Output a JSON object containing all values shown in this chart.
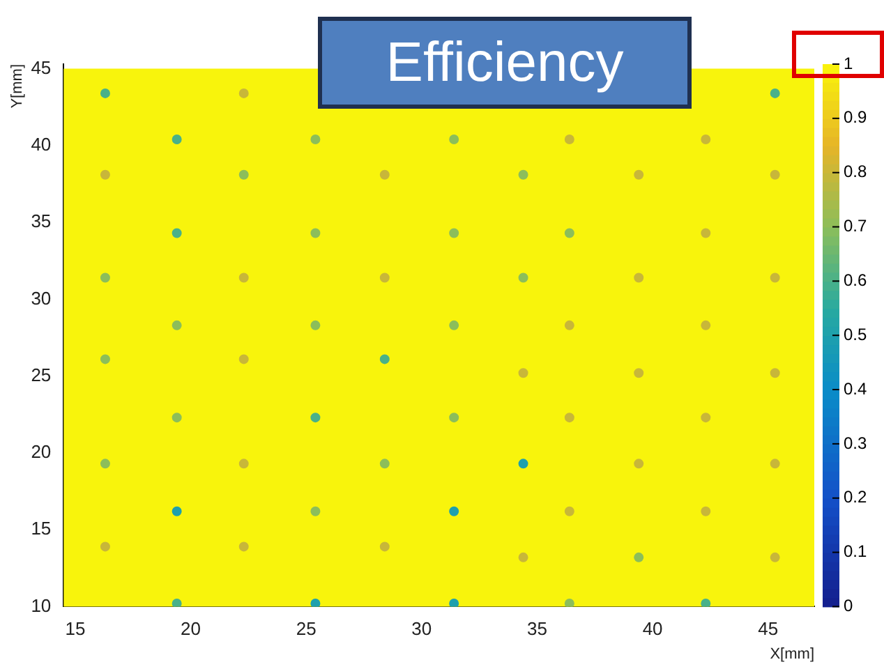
{
  "chart_data": {
    "type": "scatter",
    "title": "Efficiency",
    "xlabel": "X[mm]",
    "ylabel": "Y[mm]",
    "xlim": [
      14.5,
      47
    ],
    "ylim": [
      10,
      45.3
    ],
    "xticks": [
      15,
      20,
      25,
      30,
      35,
      40,
      45
    ],
    "yticks": [
      10,
      15,
      20,
      25,
      30,
      35,
      40,
      45
    ],
    "clim": [
      0,
      1
    ],
    "cticks": [
      0,
      0.1,
      0.2,
      0.3,
      0.4,
      0.5,
      0.6,
      0.7,
      0.8,
      0.9,
      1
    ],
    "bands": [
      {
        "axis": "y",
        "from": 10,
        "to": 45,
        "color": "#f8f40c"
      }
    ],
    "marker": "circle",
    "grid": false,
    "legend": false,
    "x": [
      16.3,
      22.3,
      45.3,
      19.4,
      25.4,
      31.4,
      36.4,
      42.3,
      16.3,
      22.3,
      28.4,
      34.4,
      39.4,
      45.3,
      19.4,
      25.4,
      31.4,
      36.4,
      42.3,
      16.3,
      22.3,
      28.4,
      34.4,
      39.4,
      45.3,
      19.4,
      25.4,
      31.4,
      36.4,
      42.3,
      16.3,
      22.3,
      28.4,
      34.4,
      39.4,
      45.3,
      19.4,
      25.4,
      31.4,
      36.4,
      42.3,
      16.3,
      22.3,
      28.4,
      34.4,
      39.4,
      45.3,
      19.4,
      25.4,
      31.4,
      36.4,
      42.3,
      16.3,
      22.3,
      28.4,
      34.4,
      39.4,
      45.3,
      19.4,
      25.4,
      31.4,
      36.4,
      42.3
    ],
    "values": [
      43.4,
      43.4,
      43.4,
      40.4,
      40.4,
      40.4,
      40.4,
      40.4,
      38.1,
      38.1,
      38.1,
      38.1,
      38.1,
      38.1,
      34.3,
      34.3,
      34.3,
      34.3,
      34.3,
      31.4,
      31.4,
      31.4,
      31.4,
      31.4,
      31.4,
      28.3,
      28.3,
      28.3,
      28.3,
      28.3,
      26.1,
      26.1,
      26.1,
      25.2,
      25.2,
      25.2,
      22.3,
      22.3,
      22.3,
      22.3,
      22.3,
      19.3,
      19.3,
      19.3,
      19.3,
      19.3,
      19.3,
      16.2,
      16.2,
      16.2,
      16.2,
      16.2,
      13.9,
      13.9,
      13.9,
      13.2,
      13.2,
      13.2,
      10.2,
      10.2,
      10.2,
      10.2,
      10.2
    ],
    "cvalues": [
      0.6,
      0.8,
      0.6,
      0.6,
      0.7,
      0.7,
      0.8,
      0.8,
      0.8,
      0.7,
      0.8,
      0.7,
      0.8,
      0.8,
      0.6,
      0.7,
      0.7,
      0.7,
      0.8,
      0.7,
      0.8,
      0.8,
      0.7,
      0.8,
      0.8,
      0.7,
      0.7,
      0.7,
      0.8,
      0.8,
      0.7,
      0.8,
      0.6,
      0.8,
      0.8,
      0.8,
      0.7,
      0.6,
      0.7,
      0.8,
      0.8,
      0.7,
      0.8,
      0.7,
      0.5,
      0.8,
      0.8,
      0.5,
      0.7,
      0.5,
      0.8,
      0.8,
      0.8,
      0.8,
      0.8,
      0.8,
      0.7,
      0.8,
      0.6,
      0.5,
      0.5,
      0.7,
      0.6
    ]
  }
}
